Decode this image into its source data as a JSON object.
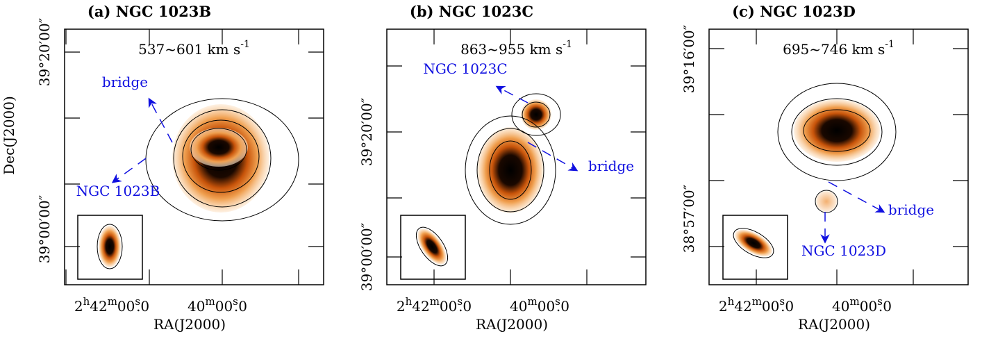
{
  "panels": [
    {
      "title": "(a) NGC 1023B",
      "velocity": {
        "range": "537~601 km s",
        "exponent": "-1"
      },
      "dec_ticks": [
        "39°20′00″",
        "39°00′00″"
      ],
      "ra_ticks": [
        {
          "parts": [
            "2",
            "h",
            "42",
            "m",
            "00",
            "s",
            ".0"
          ]
        },
        {
          "parts": [
            "40",
            "m",
            "00",
            "s",
            ".0"
          ]
        }
      ],
      "annotations": [
        "bridge",
        "NGC 1023B"
      ]
    },
    {
      "title": "(b) NGC 1023C",
      "velocity": {
        "range": "863~955 km s",
        "exponent": "-1"
      },
      "dec_ticks": [
        "39°20′00″",
        "39°00′00″"
      ],
      "ra_ticks": [
        {
          "parts": [
            "2",
            "h",
            "42",
            "m",
            "00",
            "s",
            ".0"
          ]
        },
        {
          "parts": [
            "40",
            "m",
            "00",
            "s",
            ".0"
          ]
        }
      ],
      "annotations": [
        "NGC 1023C",
        "bridge"
      ]
    },
    {
      "title": "(c) NGC 1023D",
      "velocity": {
        "range": "695~746 km s",
        "exponent": "-1"
      },
      "dec_ticks": [
        "39°16′00″",
        "38°57′00″"
      ],
      "ra_ticks": [
        {
          "parts": [
            "2",
            "h",
            "42",
            "m",
            "00",
            "s",
            ".0"
          ]
        },
        {
          "parts": [
            "40",
            "m",
            "00",
            "s",
            ".0"
          ]
        }
      ],
      "annotations": [
        "bridge",
        "NGC 1023D"
      ]
    }
  ],
  "x_label": "RA(J2000)",
  "y_label": "Dec(J2000)"
}
